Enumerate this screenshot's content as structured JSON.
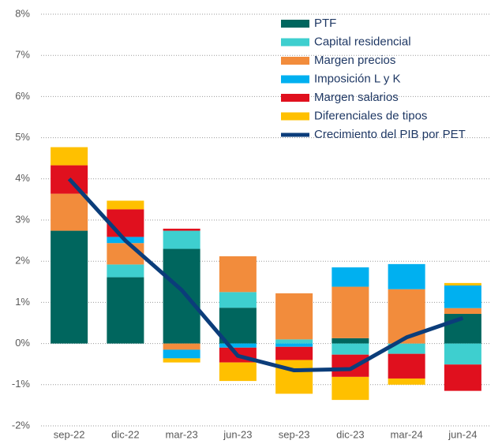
{
  "chart_data": {
    "type": "bar",
    "categories": [
      "sep-22",
      "dic-22",
      "mar-23",
      "jun-23",
      "sep-23",
      "dic-23",
      "mar-24",
      "jun-24"
    ],
    "series": [
      {
        "name": "PTF",
        "color": "#00665e",
        "values": [
          2.74,
          1.61,
          2.3,
          0.87,
          0,
          0.13,
          0,
          0.72
        ]
      },
      {
        "name": "Capital residencial",
        "color": "#3ecfcf",
        "values": [
          0,
          0.31,
          0.44,
          0.38,
          0.1,
          -0.27,
          -0.25,
          -0.51
        ]
      },
      {
        "name": "Margen precios",
        "color": "#f28c3c",
        "values": [
          0.9,
          0.52,
          -0.15,
          0.87,
          1.12,
          1.25,
          1.32,
          0.14
        ]
      },
      {
        "name": "Imposición L y K",
        "color": "#00b0f0",
        "values": [
          0,
          0.15,
          -0.21,
          -0.1,
          -0.08,
          0.47,
          0.61,
          0.55
        ]
      },
      {
        "name": "Margen salarios",
        "color": "#e0101e",
        "values": [
          0.69,
          0.67,
          0.05,
          -0.36,
          -0.32,
          -0.54,
          -0.6,
          -0.64
        ]
      },
      {
        "name": "Diferenciales de tipos",
        "color": "#ffc000",
        "values": [
          0.44,
          0.21,
          -0.1,
          -0.45,
          -0.82,
          -0.56,
          -0.15,
          0.06
        ]
      },
      {
        "name": "Crecimiento del PIB por PET",
        "color": "#0b3d7a",
        "type": "line",
        "values": [
          4.0,
          2.5,
          1.3,
          -0.3,
          -0.65,
          -0.62,
          0.15,
          0.62
        ]
      }
    ],
    "ylim": [
      -2,
      8
    ],
    "yticks": [
      {
        "value": -2,
        "label": "-2%"
      },
      {
        "value": -1,
        "label": "-1%"
      },
      {
        "value": 0,
        "label": "0%"
      },
      {
        "value": 1,
        "label": "1%"
      },
      {
        "value": 2,
        "label": "2%"
      },
      {
        "value": 3,
        "label": "3%"
      },
      {
        "value": 4,
        "label": "4%"
      },
      {
        "value": 5,
        "label": "5%"
      },
      {
        "value": 6,
        "label": "6%"
      },
      {
        "value": 7,
        "label": "7%"
      },
      {
        "value": 8,
        "label": "8%"
      }
    ],
    "grid": true,
    "legend": "top-right"
  }
}
